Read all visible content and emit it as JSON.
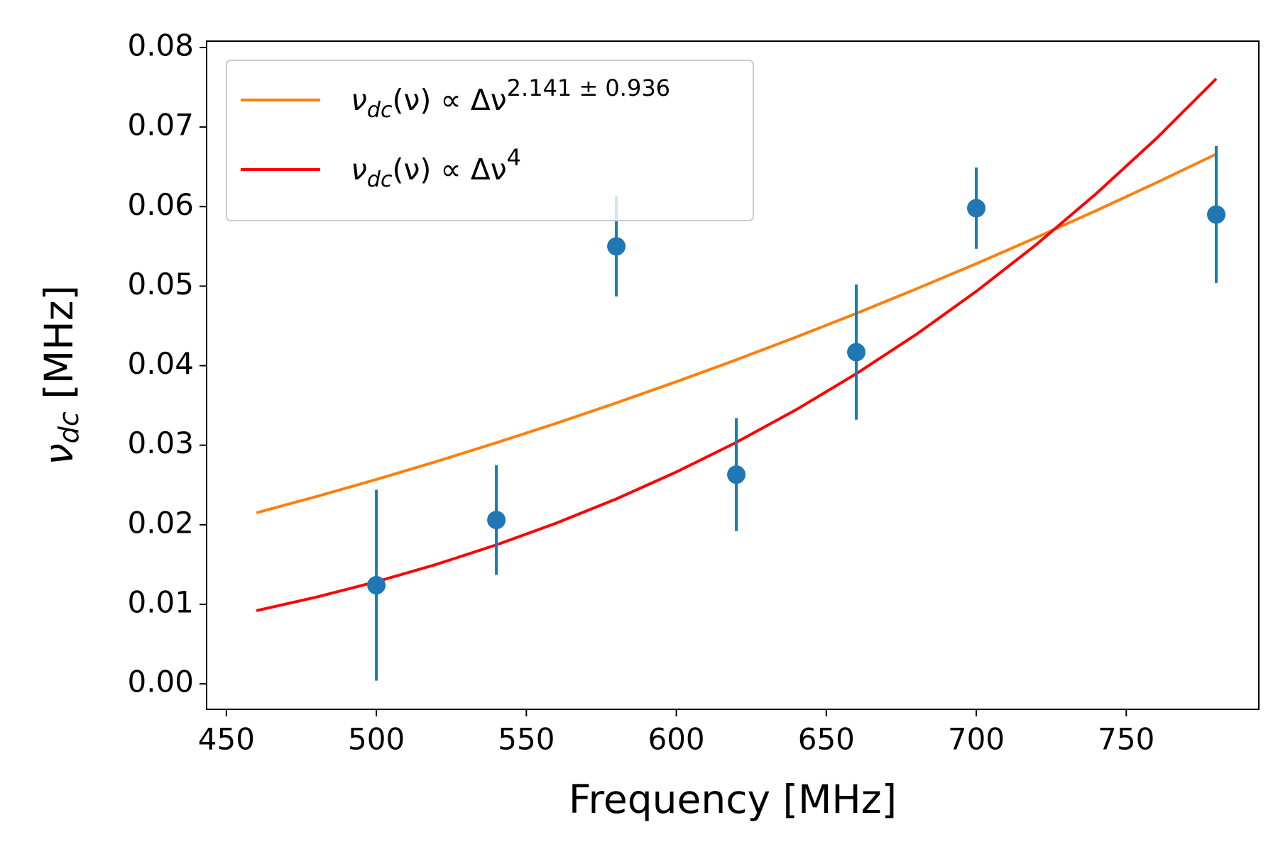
{
  "chart_data": {
    "type": "errorbar",
    "x_label": "Frequency [MHz]",
    "y_label": [
      "ν",
      "dc",
      " [MHz]"
    ],
    "xlim": [
      443.4,
      794.2
    ],
    "ylim": [
      -0.0032,
      0.0808
    ],
    "xticks": [
      450,
      500,
      550,
      600,
      650,
      700,
      750
    ],
    "yticks": [
      {
        "value": 0,
        "label": "0.00"
      },
      0.01,
      0.02,
      0.03,
      0.04,
      0.05,
      0.06,
      0.07,
      0.08
    ],
    "legend": "upper left",
    "points": {
      "color": "#1f77b4",
      "x": [
        500,
        540,
        580,
        620,
        660,
        700,
        780
      ],
      "values": [
        0.0124,
        0.0206,
        0.055,
        0.0263,
        0.0417,
        0.0598,
        0.059
      ],
      "errors": [
        0.012,
        0.0069,
        0.0063,
        0.0071,
        0.0085,
        0.0051,
        0.0086
      ]
    },
    "series": [
      {
        "name": [
          "ν",
          "dc",
          "(ν) ∝ Δν",
          "2.141 ± 0.936"
        ],
        "color": "#ff7f0e",
        "x": [
          460,
          480,
          500,
          520,
          540,
          560,
          580,
          600,
          620,
          640,
          660,
          680,
          700,
          720,
          740,
          760,
          780
        ],
        "values": [
          0.0215,
          0.02355,
          0.0257,
          0.02795,
          0.03031,
          0.03276,
          0.03532,
          0.03798,
          0.04074,
          0.0436,
          0.04657,
          0.04965,
          0.05282,
          0.05611,
          0.0595,
          0.06299,
          0.0666
        ]
      },
      {
        "name": [
          "ν",
          "dc",
          "(ν) ∝ Δν",
          "4"
        ],
        "color": "#ff0000",
        "x": [
          460,
          480,
          500,
          520,
          540,
          560,
          580,
          600,
          620,
          640,
          660,
          680,
          700,
          720,
          740,
          760,
          780
        ],
        "values": [
          0.0092,
          0.01091,
          0.01284,
          0.01502,
          0.01747,
          0.02021,
          0.02325,
          0.02663,
          0.03036,
          0.03447,
          0.03899,
          0.04393,
          0.04934,
          0.05522,
          0.06163,
          0.06855,
          0.07607
        ]
      }
    ]
  }
}
